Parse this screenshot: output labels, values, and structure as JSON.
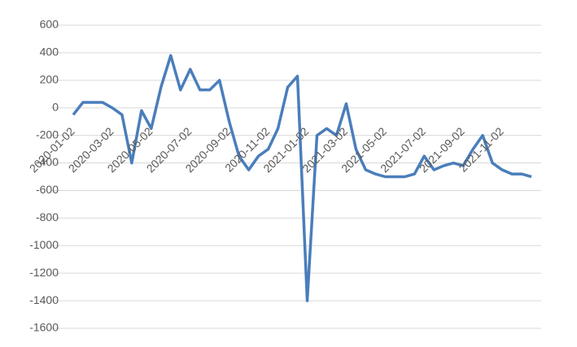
{
  "chart_data": {
    "type": "line",
    "categories": [
      "2020-01-02",
      null,
      null,
      null,
      "2020-03-02",
      null,
      null,
      null,
      "2020-05-02",
      null,
      null,
      null,
      "2020-07-02",
      null,
      null,
      null,
      "2020-09-02",
      null,
      null,
      null,
      "2020-11-02",
      null,
      null,
      null,
      "2021-01-02",
      null,
      null,
      null,
      "2021-03-02",
      null,
      null,
      null,
      "2021-05-02",
      null,
      null,
      null,
      "2021-07-02",
      null,
      null,
      null,
      "2021-09-02",
      null,
      null,
      null,
      "2021-11-02",
      null,
      null,
      null
    ],
    "series": [
      {
        "color": "#4a7ebb",
        "values": [
          -50,
          40,
          40,
          40,
          0,
          -50,
          -400,
          -20,
          -150,
          150,
          380,
          130,
          280,
          130,
          130,
          200,
          -100,
          -350,
          -450,
          -350,
          -300,
          -150,
          150,
          230,
          -1400,
          -200,
          -150,
          -200,
          30,
          -300,
          -450,
          -480,
          -500,
          -500,
          -500,
          -480,
          -350,
          -450,
          -420,
          -400,
          -420,
          -300,
          -200,
          -400,
          -450,
          -480,
          -480,
          -500
        ]
      }
    ],
    "ylim": [
      -1600,
      600
    ],
    "yticks": [
      600,
      400,
      200,
      0,
      -200,
      -400,
      -600,
      -800,
      -1000,
      -1200,
      -1400,
      -1600
    ],
    "grid": true
  }
}
